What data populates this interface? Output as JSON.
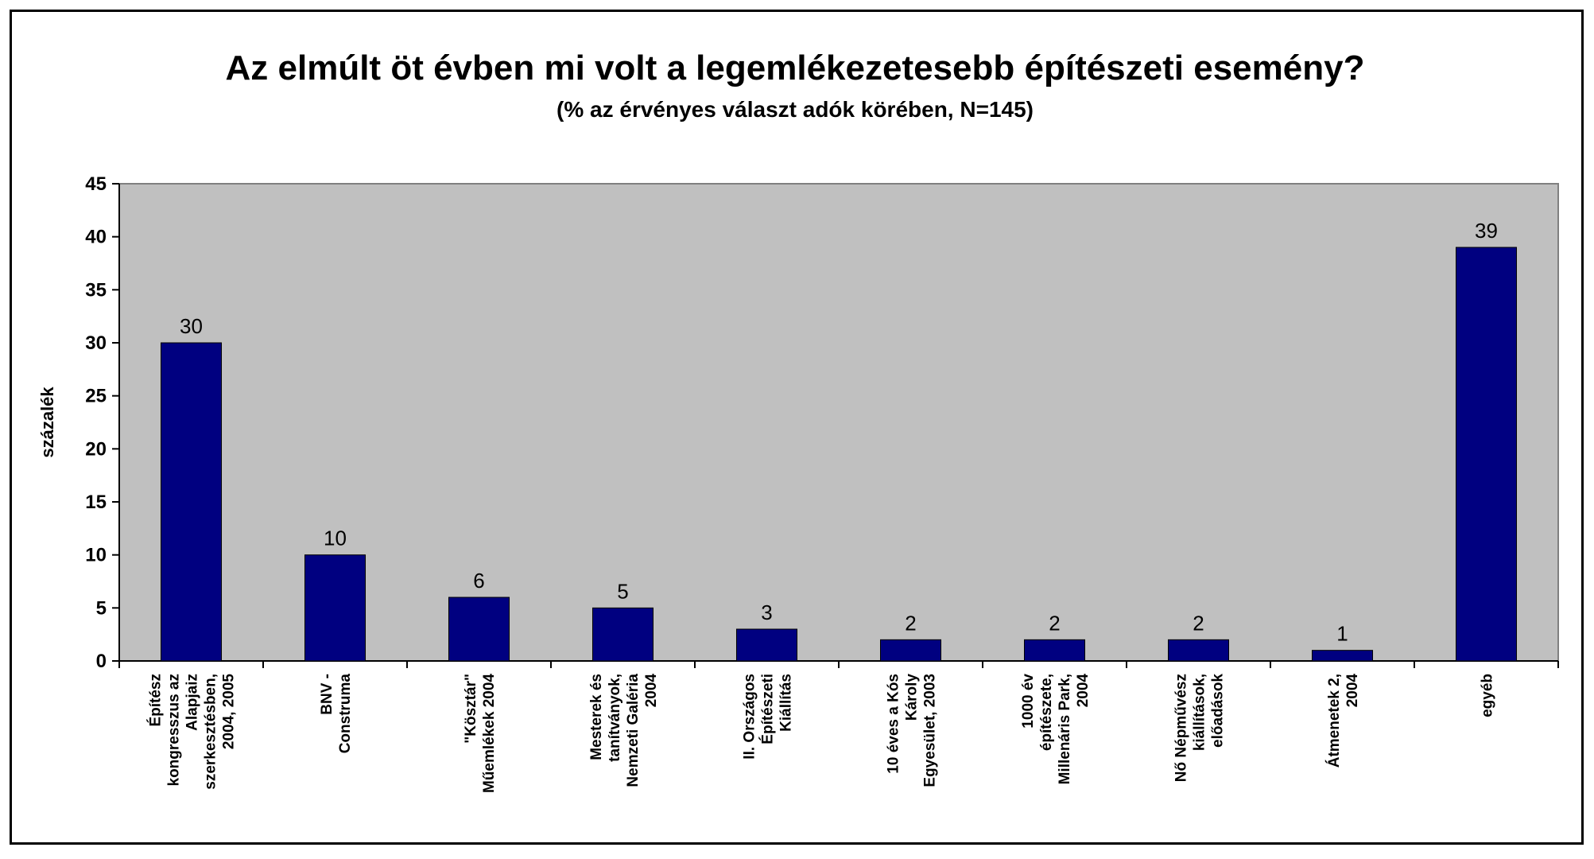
{
  "chart_data": {
    "type": "bar",
    "title": "Az elmúlt öt évben mi volt a legemlékezetesebb építészeti esemény?",
    "subtitle": "(% az érvényes választ adók körében, N=145)",
    "xlabel": "",
    "ylabel": "százalék",
    "ylim": [
      0,
      45
    ],
    "yticks": [
      0,
      5,
      10,
      15,
      20,
      25,
      30,
      35,
      40,
      45
    ],
    "grid": false,
    "legend": "none",
    "colors": {
      "bar": "#000080",
      "plot_bg": "#c0c0c0",
      "frame": "#000000"
    },
    "categories": [
      [
        "Építész",
        "kongresszus az",
        "Alapjaiz",
        "szerkesztésben,",
        "2004, 2005"
      ],
      [
        "BNV -",
        "Construma"
      ],
      [
        "\"Kösztár\"",
        "Műemlékek 2004"
      ],
      [
        "Mesterek és",
        "tanítványok,",
        "Nemzeti Galéria",
        "2004"
      ],
      [
        "II. Országos",
        "Építészeti",
        "Kiállítás"
      ],
      [
        "10 éves a Kós",
        "Károly",
        "Egyesület, 2003"
      ],
      [
        "1000 év",
        "építészete,",
        "Millenáris Park,",
        "2004"
      ],
      [
        "Nő Népművész",
        "kiállítások,",
        "előadások"
      ],
      [
        "Átmenetek 2,",
        "2004"
      ],
      [
        "egyéb"
      ]
    ],
    "values": [
      30,
      10,
      6,
      5,
      3,
      2,
      2,
      2,
      1,
      39
    ]
  }
}
